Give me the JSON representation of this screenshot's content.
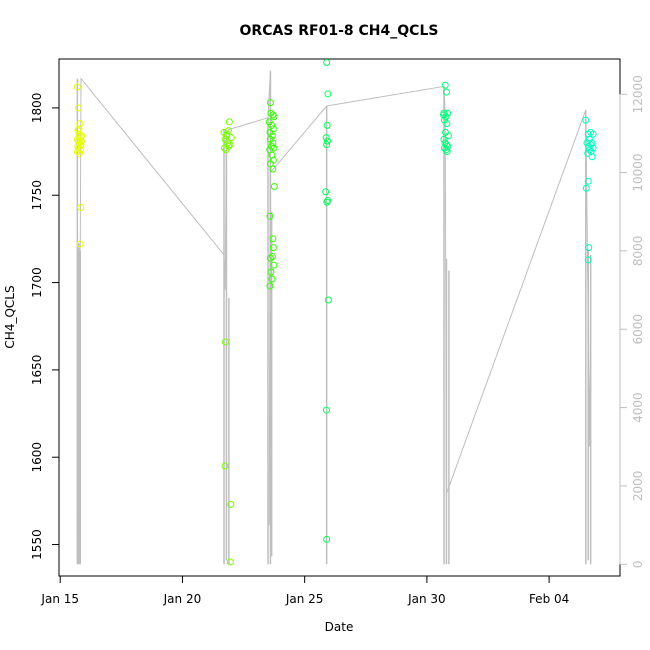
{
  "chart_data": {
    "type": "scatter",
    "title": "ORCAS RF01-8 CH4_QCLS",
    "xlabel": "Date",
    "ylabel": "CH4_QCLS",
    "x_ticks": [
      {
        "value": 0,
        "label": "Jan 15"
      },
      {
        "value": 5,
        "label": "Jan 20"
      },
      {
        "value": 10,
        "label": "Jan 25"
      },
      {
        "value": 15,
        "label": "Jan 30"
      },
      {
        "value": 20,
        "label": "Feb 04"
      }
    ],
    "y_ticks": [
      1550,
      1600,
      1650,
      1700,
      1750,
      1800
    ],
    "y2_ticks": [
      0,
      2000,
      4000,
      6000,
      8000,
      10000,
      12000
    ],
    "xlim": [
      -0.05,
      22.9
    ],
    "ylim": [
      1532,
      1828
    ],
    "y2lim": [
      -300,
      12900
    ],
    "right_axis_color": "#bebebe",
    "grid": false,
    "series": [
      {
        "color": "#e6ff00",
        "altcolor": "#f2f200",
        "points": [
          [
            0.7,
            1812
          ],
          [
            0.75,
            1800
          ],
          [
            0.8,
            1791
          ],
          [
            0.72,
            1787
          ],
          [
            0.78,
            1785
          ],
          [
            0.82,
            1783
          ],
          [
            0.7,
            1782
          ],
          [
            0.74,
            1781
          ],
          [
            0.8,
            1780
          ],
          [
            0.85,
            1779
          ],
          [
            0.72,
            1778
          ],
          [
            0.77,
            1777
          ],
          [
            0.83,
            1776
          ],
          [
            0.7,
            1775
          ],
          [
            0.79,
            1774
          ],
          [
            0.86,
            1781
          ],
          [
            0.76,
            1788
          ],
          [
            0.88,
            1784
          ],
          [
            0.84,
            1743
          ],
          [
            0.81,
            1722
          ]
        ]
      },
      {
        "color": "#77ff00",
        "points": [
          [
            6.7,
            1786
          ],
          [
            6.8,
            1784
          ],
          [
            6.75,
            1782
          ],
          [
            6.85,
            1780
          ],
          [
            6.9,
            1778
          ],
          [
            6.72,
            1777
          ],
          [
            6.95,
            1779
          ],
          [
            6.78,
            1776
          ],
          [
            7.0,
            1783
          ],
          [
            6.82,
            1785
          ],
          [
            6.88,
            1787
          ],
          [
            6.92,
            1792
          ],
          [
            6.76,
            1666
          ],
          [
            6.74,
            1595
          ],
          [
            6.98,
            1573
          ],
          [
            6.96,
            1540
          ]
        ]
      },
      {
        "color": "#33ff00",
        "points": [
          [
            8.6,
            1803
          ],
          [
            8.62,
            1797
          ],
          [
            8.7,
            1796
          ],
          [
            8.75,
            1795
          ],
          [
            8.55,
            1792
          ],
          [
            8.65,
            1790
          ],
          [
            8.72,
            1788
          ],
          [
            8.58,
            1786
          ],
          [
            8.68,
            1784
          ],
          [
            8.6,
            1782
          ],
          [
            8.7,
            1780
          ],
          [
            8.64,
            1778
          ],
          [
            8.74,
            1777
          ],
          [
            8.57,
            1776
          ],
          [
            8.66,
            1773
          ],
          [
            8.72,
            1770
          ],
          [
            8.6,
            1768
          ],
          [
            8.7,
            1765
          ],
          [
            8.76,
            1755
          ],
          [
            8.58,
            1738
          ],
          [
            8.7,
            1725
          ],
          [
            8.72,
            1720
          ],
          [
            8.68,
            1715
          ],
          [
            8.6,
            1714
          ],
          [
            8.74,
            1710
          ],
          [
            8.62,
            1706
          ],
          [
            8.66,
            1702
          ],
          [
            8.58,
            1698
          ]
        ]
      },
      {
        "color": "#00ff55",
        "points": [
          [
            10.9,
            1826
          ],
          [
            10.95,
            1808
          ],
          [
            10.92,
            1790
          ],
          [
            10.88,
            1783
          ],
          [
            10.93,
            1781
          ],
          [
            10.9,
            1779
          ],
          [
            10.86,
            1752
          ],
          [
            10.94,
            1747
          ],
          [
            10.91,
            1746
          ],
          [
            10.97,
            1690
          ],
          [
            10.89,
            1627
          ],
          [
            10.9,
            1553
          ]
        ]
      },
      {
        "color": "#00ff77",
        "points": [
          [
            15.75,
            1813
          ],
          [
            15.8,
            1809
          ],
          [
            15.7,
            1797
          ],
          [
            15.68,
            1796
          ],
          [
            15.85,
            1797
          ],
          [
            15.78,
            1795
          ],
          [
            15.72,
            1793
          ],
          [
            15.82,
            1791
          ],
          [
            15.76,
            1786
          ],
          [
            15.88,
            1784
          ],
          [
            15.7,
            1782
          ],
          [
            15.74,
            1780
          ],
          [
            15.8,
            1779
          ],
          [
            15.86,
            1778
          ],
          [
            15.72,
            1777
          ],
          [
            15.78,
            1776
          ],
          [
            15.83,
            1775
          ]
        ]
      },
      {
        "color": "#00ffbf",
        "points": [
          [
            21.5,
            1793
          ],
          [
            21.7,
            1786
          ],
          [
            21.6,
            1785
          ],
          [
            21.8,
            1785
          ],
          [
            21.65,
            1782
          ],
          [
            21.75,
            1780
          ],
          [
            21.55,
            1780
          ],
          [
            21.7,
            1779
          ],
          [
            21.62,
            1778
          ],
          [
            21.8,
            1777
          ],
          [
            21.66,
            1776
          ],
          [
            21.72,
            1775
          ],
          [
            21.58,
            1774
          ],
          [
            21.76,
            1772
          ],
          [
            21.6,
            1758
          ],
          [
            21.52,
            1754
          ],
          [
            21.62,
            1720
          ],
          [
            21.6,
            1713
          ]
        ]
      }
    ],
    "secondary_line": {
      "color": "#bebebe",
      "points": [
        [
          0.7,
          700
        ],
        [
          0.75,
          8000
        ],
        [
          0.8,
          7800
        ],
        [
          0.82,
          8200
        ],
        [
          0.85,
          12400
        ],
        [
          6.7,
          7900
        ],
        [
          6.75,
          7000
        ],
        [
          6.8,
          11000
        ],
        [
          6.9,
          11100
        ],
        [
          8.5,
          11400
        ],
        [
          8.6,
          12600
        ],
        [
          8.55,
          1000
        ],
        [
          8.6,
          10000
        ],
        [
          10.9,
          11700
        ],
        [
          15.7,
          12200
        ],
        [
          15.75,
          11500
        ],
        [
          15.8,
          1800
        ],
        [
          21.5,
          11600
        ],
        [
          21.55,
          9000
        ],
        [
          21.6,
          6000
        ],
        [
          21.65,
          3000
        ],
        [
          21.7,
          7000
        ]
      ]
    },
    "secondary_spikes": [
      {
        "x": 0.7,
        "y_top": 12400,
        "y_bottom": 0
      },
      {
        "x": 0.76,
        "y_top": 8200,
        "y_bottom": 0
      },
      {
        "x": 0.82,
        "y_top": 8000,
        "y_bottom": 0
      },
      {
        "x": 6.7,
        "y_top": 11100,
        "y_bottom": 0
      },
      {
        "x": 6.8,
        "y_top": 11000,
        "y_bottom": 100
      },
      {
        "x": 6.9,
        "y_top": 6800,
        "y_bottom": 0
      },
      {
        "x": 8.5,
        "y_top": 11400,
        "y_bottom": 0
      },
      {
        "x": 8.6,
        "y_top": 12600,
        "y_bottom": 0
      },
      {
        "x": 8.65,
        "y_top": 9000,
        "y_bottom": 200
      },
      {
        "x": 10.9,
        "y_top": 11700,
        "y_bottom": 0
      },
      {
        "x": 15.7,
        "y_top": 12200,
        "y_bottom": 0
      },
      {
        "x": 15.8,
        "y_top": 7800,
        "y_bottom": 0
      },
      {
        "x": 15.9,
        "y_top": 7500,
        "y_bottom": 0
      },
      {
        "x": 21.5,
        "y_top": 11600,
        "y_bottom": 0
      },
      {
        "x": 21.6,
        "y_top": 8000,
        "y_bottom": 100
      },
      {
        "x": 21.7,
        "y_top": 7900,
        "y_bottom": 0
      }
    ]
  }
}
